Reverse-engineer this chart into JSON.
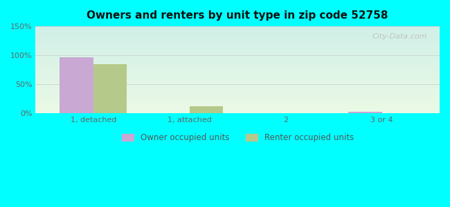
{
  "title": "Owners and renters by unit type in zip code 52758",
  "categories": [
    "1, detached",
    "1, attached",
    "2",
    "3 or 4"
  ],
  "owner_values": [
    97,
    0,
    0,
    2
  ],
  "renter_values": [
    85,
    12,
    0,
    0
  ],
  "owner_color": "#c9a8d4",
  "renter_color": "#b5c98a",
  "ylim": [
    0,
    150
  ],
  "yticks": [
    0,
    50,
    100,
    150
  ],
  "ytick_labels": [
    "0%",
    "50%",
    "100%",
    "150%"
  ],
  "outer_background": "#00ffff",
  "bar_width": 0.35,
  "legend_owner": "Owner occupied units",
  "legend_renter": "Renter occupied units",
  "watermark": "City-Data.com",
  "xlim_left": -0.6,
  "xlim_right": 3.6
}
